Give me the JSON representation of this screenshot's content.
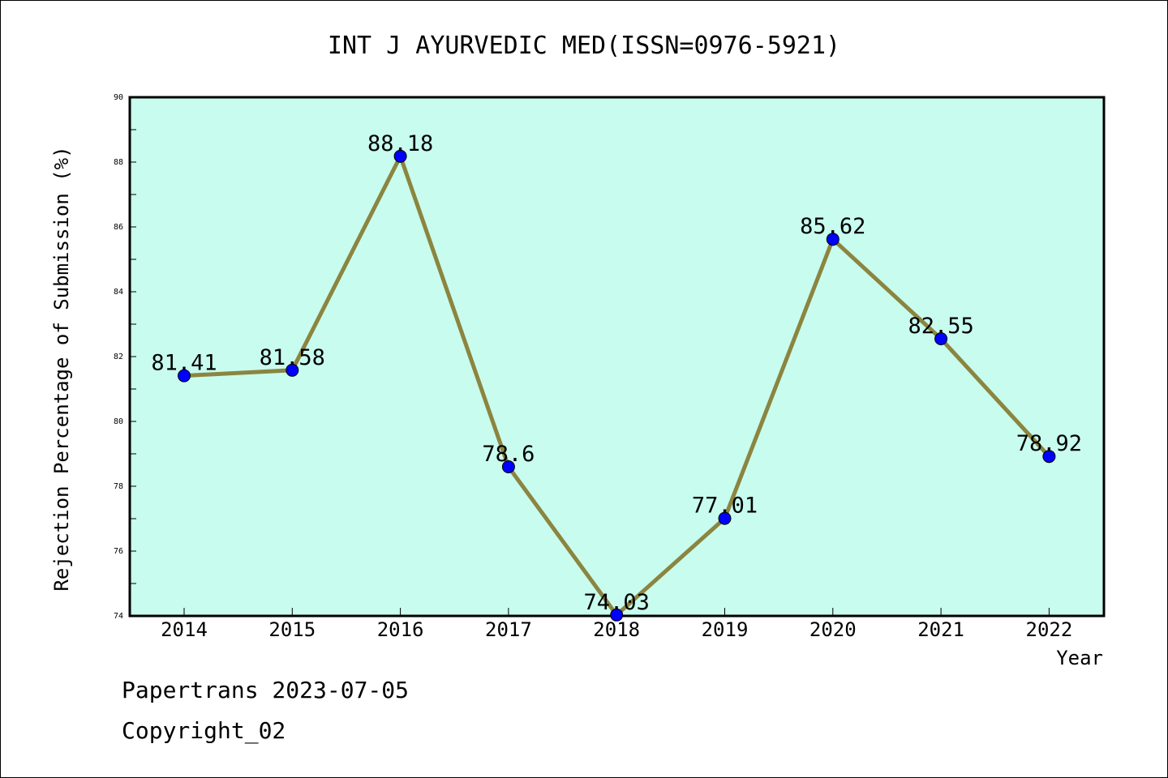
{
  "chart_data": {
    "type": "line",
    "title": "INT J AYURVEDIC MED(ISSN=0976-5921)",
    "xlabel": "Year",
    "ylabel": "Rejection Percentage of Submission (%)",
    "categories": [
      "2014",
      "2015",
      "2016",
      "2017",
      "2018",
      "2019",
      "2020",
      "2021",
      "2022"
    ],
    "series": [
      {
        "values": [
          81.41,
          81.58,
          88.18,
          78.6,
          74.03,
          77.01,
          85.62,
          82.55,
          78.92
        ],
        "labels": [
          "81.41",
          "81.58",
          "88.18",
          "78.6",
          "74.03",
          "77.01",
          "85.62",
          "82.55",
          "78.92"
        ]
      }
    ],
    "ylim": [
      74,
      90
    ],
    "yticks": [
      "74",
      "76",
      "78",
      "80",
      "82",
      "84",
      "86",
      "88",
      "90"
    ],
    "grid": false,
    "legend": "none",
    "colors": {
      "plot_background": "#c8fcee",
      "line": "#8b8540",
      "marker": "#0000ff"
    }
  },
  "footer": {
    "line1": "Papertrans 2023-07-05",
    "line2": "Copyright_02"
  }
}
